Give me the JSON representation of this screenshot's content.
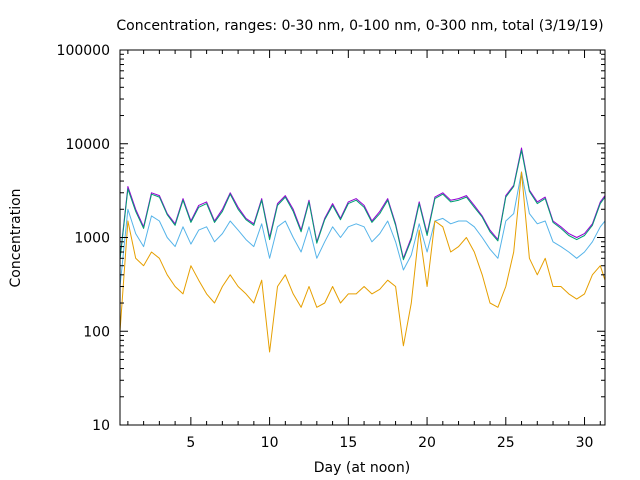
{
  "chart_data": {
    "type": "line",
    "title": "Concentration, ranges: 0-30 nm, 0-100 nm, 0-300 nm, total (3/19/19)",
    "xlabel": "Day (at noon)",
    "ylabel": "Concentration",
    "xlim": [
      0.5,
      31.3
    ],
    "ylim": [
      10,
      100000
    ],
    "y_scale": "log",
    "x_ticks": [
      5,
      10,
      15,
      20,
      25,
      30
    ],
    "x_tick_labels": [
      "5",
      "10",
      "15",
      "20",
      "25",
      "30"
    ],
    "y_ticks": [
      10,
      100,
      1000,
      10000,
      100000
    ],
    "y_tick_labels": [
      "10",
      "100",
      "1000",
      "10000",
      "100000"
    ],
    "grid": false,
    "legend": "none",
    "x": [
      0.5,
      1,
      1.5,
      2,
      2.5,
      3,
      3.5,
      4,
      4.5,
      5,
      5.5,
      6,
      6.5,
      7,
      7.5,
      8,
      8.5,
      9,
      9.5,
      10,
      10.5,
      11,
      11.5,
      12,
      12.5,
      13,
      13.5,
      14,
      14.5,
      15,
      15.5,
      16,
      16.5,
      17,
      17.5,
      18,
      18.5,
      19,
      19.5,
      20,
      20.5,
      21,
      21.5,
      22,
      22.5,
      23,
      23.5,
      24,
      24.5,
      25,
      25.5,
      26,
      26.5,
      27,
      27.5,
      28,
      28.5,
      29,
      29.5,
      30,
      30.5,
      31,
      31.3
    ],
    "series": [
      {
        "color": "#9400d3",
        "values": [
          600,
          3500,
          2000,
          1300,
          3000,
          2800,
          1800,
          1400,
          2600,
          1500,
          2200,
          2400,
          1500,
          2000,
          3000,
          2100,
          1600,
          1400,
          2600,
          1000,
          2300,
          2800,
          2000,
          1200,
          2500,
          900,
          1600,
          2300,
          1600,
          2400,
          2600,
          2200,
          1500,
          1900,
          2600,
          1400,
          600,
          1000,
          2400,
          1100,
          2700,
          3000,
          2500,
          2600,
          2800,
          2200,
          1700,
          1200,
          950,
          2800,
          3600,
          9000,
          3200,
          2400,
          2700,
          1500,
          1300,
          1100,
          1000,
          1100,
          1400,
          2400,
          2800
        ]
      },
      {
        "color": "#009e73",
        "values": [
          580,
          3300,
          1900,
          1250,
          2900,
          2700,
          1750,
          1350,
          2500,
          1450,
          2100,
          2300,
          1450,
          1900,
          2900,
          2000,
          1550,
          1350,
          2500,
          950,
          2200,
          2700,
          1900,
          1150,
          2400,
          870,
          1550,
          2200,
          1550,
          2300,
          2500,
          2100,
          1450,
          1800,
          2500,
          1350,
          580,
          950,
          2300,
          1050,
          2600,
          2900,
          2400,
          2500,
          2700,
          2100,
          1650,
          1150,
          920,
          2700,
          3500,
          8500,
          3100,
          2300,
          2600,
          1450,
          1250,
          1050,
          950,
          1050,
          1350,
          2300,
          2700
        ]
      },
      {
        "color": "#56b4e9",
        "values": [
          300,
          2000,
          1100,
          800,
          1700,
          1500,
          1000,
          800,
          1300,
          850,
          1200,
          1300,
          900,
          1100,
          1500,
          1200,
          950,
          800,
          1400,
          600,
          1300,
          1500,
          1000,
          700,
          1300,
          600,
          900,
          1300,
          1000,
          1300,
          1400,
          1300,
          900,
          1100,
          1500,
          900,
          450,
          650,
          1400,
          700,
          1500,
          1600,
          1400,
          1500,
          1500,
          1300,
          1000,
          750,
          600,
          1500,
          1800,
          5000,
          1800,
          1400,
          1500,
          900,
          800,
          700,
          600,
          700,
          900,
          1300,
          1500
        ]
      },
      {
        "color": "#e69f00",
        "values": [
          100,
          1500,
          600,
          500,
          700,
          600,
          400,
          300,
          250,
          500,
          350,
          250,
          200,
          300,
          400,
          300,
          250,
          200,
          350,
          60,
          300,
          400,
          250,
          180,
          300,
          180,
          200,
          300,
          200,
          250,
          250,
          300,
          250,
          280,
          350,
          300,
          70,
          200,
          1200,
          300,
          1500,
          1300,
          700,
          800,
          1000,
          700,
          400,
          200,
          180,
          300,
          700,
          5000,
          600,
          400,
          600,
          300,
          300,
          250,
          220,
          250,
          400,
          500,
          350
        ]
      }
    ]
  }
}
